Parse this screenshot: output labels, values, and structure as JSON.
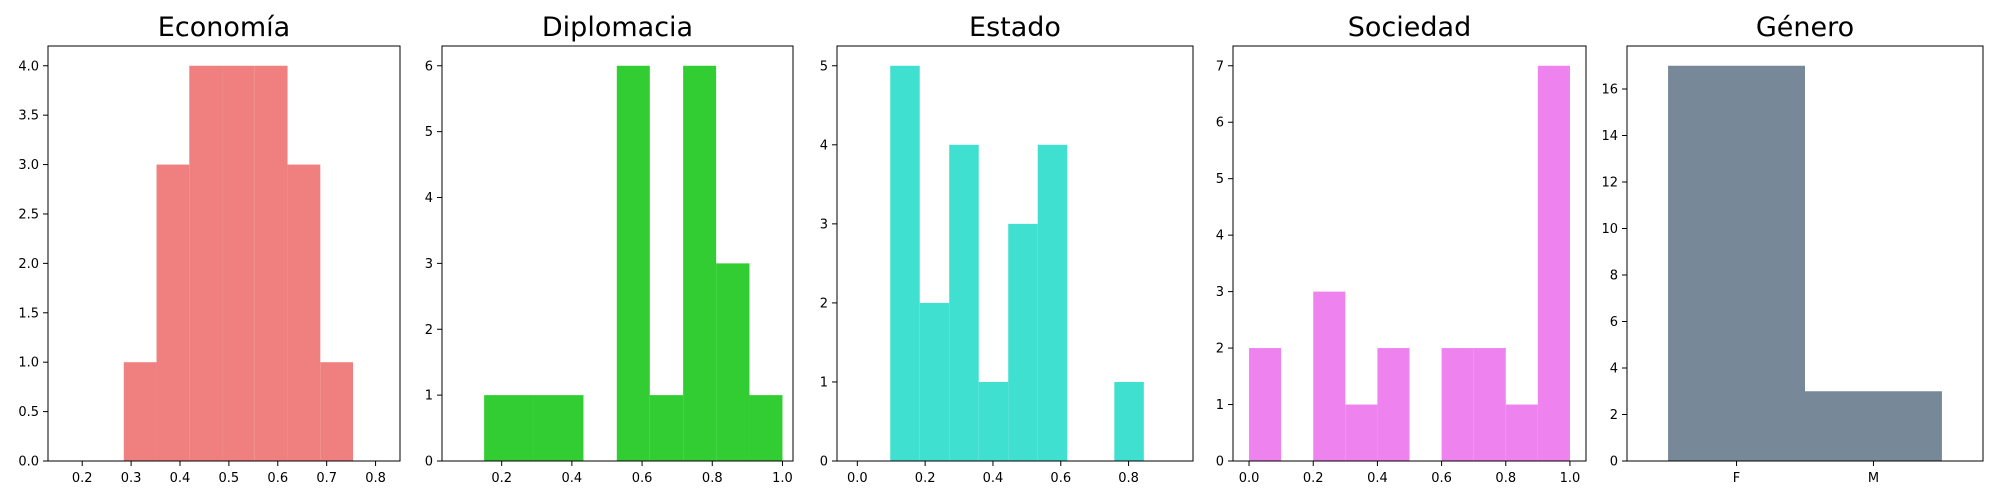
{
  "chart_data": [
    {
      "type": "histogram",
      "title": "Economía",
      "color": "#f08080",
      "xlim": [
        0.13,
        0.85
      ],
      "ylim": [
        0,
        4.2
      ],
      "xticks": [
        0.2,
        0.3,
        0.4,
        0.5,
        0.6,
        0.7,
        0.8
      ],
      "xtick_labels": [
        "0.2",
        "0.3",
        "0.4",
        "0.5",
        "0.6",
        "0.7",
        "0.8"
      ],
      "yticks": [
        0,
        0.5,
        1.0,
        1.5,
        2.0,
        2.5,
        3.0,
        3.5,
        4.0
      ],
      "ytick_labels": [
        "0.0",
        "0.5",
        "1.0",
        "1.5",
        "2.0",
        "2.5",
        "3.0",
        "3.5",
        "4.0"
      ],
      "bins": [
        {
          "x0": 0.285,
          "x1": 0.352,
          "count": 1
        },
        {
          "x0": 0.352,
          "x1": 0.419,
          "count": 3
        },
        {
          "x0": 0.419,
          "x1": 0.486,
          "count": 4
        },
        {
          "x0": 0.486,
          "x1": 0.553,
          "count": 4
        },
        {
          "x0": 0.553,
          "x1": 0.62,
          "count": 4
        },
        {
          "x0": 0.62,
          "x1": 0.687,
          "count": 3
        },
        {
          "x0": 0.687,
          "x1": 0.754,
          "count": 1
        }
      ]
    },
    {
      "type": "histogram",
      "title": "Diplomacia",
      "color": "#32cd32",
      "xlim": [
        0.03,
        1.03
      ],
      "ylim": [
        0,
        6.3
      ],
      "xticks": [
        0.2,
        0.4,
        0.6,
        0.8,
        1.0
      ],
      "xtick_labels": [
        "0.2",
        "0.4",
        "0.6",
        "0.8",
        "1.0"
      ],
      "yticks": [
        0,
        1,
        2,
        3,
        4,
        5,
        6
      ],
      "ytick_labels": [
        "0",
        "1",
        "2",
        "3",
        "4",
        "5",
        "6"
      ],
      "bins": [
        {
          "x0": 0.15,
          "x1": 0.292,
          "count": 1
        },
        {
          "x0": 0.292,
          "x1": 0.433,
          "count": 1
        },
        {
          "x0": 0.433,
          "x1": 0.528,
          "count": 0
        },
        {
          "x0": 0.528,
          "x1": 0.622,
          "count": 6
        },
        {
          "x0": 0.622,
          "x1": 0.717,
          "count": 1
        },
        {
          "x0": 0.717,
          "x1": 0.811,
          "count": 6
        },
        {
          "x0": 0.811,
          "x1": 0.906,
          "count": 3
        },
        {
          "x0": 0.906,
          "x1": 1.0,
          "count": 1
        }
      ]
    },
    {
      "type": "histogram",
      "title": "Estado",
      "color": "#40e0d0",
      "xlim": [
        -0.06,
        0.99
      ],
      "ylim": [
        0,
        5.25
      ],
      "xticks": [
        0.0,
        0.2,
        0.4,
        0.6,
        0.8
      ],
      "xtick_labels": [
        "0.0",
        "0.2",
        "0.4",
        "0.6",
        "0.8"
      ],
      "yticks": [
        0,
        1,
        2,
        3,
        4,
        5
      ],
      "ytick_labels": [
        "0",
        "1",
        "2",
        "3",
        "4",
        "5"
      ],
      "bins": [
        {
          "x0": 0.097,
          "x1": 0.184,
          "count": 5
        },
        {
          "x0": 0.184,
          "x1": 0.271,
          "count": 2
        },
        {
          "x0": 0.271,
          "x1": 0.358,
          "count": 4
        },
        {
          "x0": 0.358,
          "x1": 0.445,
          "count": 1
        },
        {
          "x0": 0.445,
          "x1": 0.532,
          "count": 3
        },
        {
          "x0": 0.532,
          "x1": 0.619,
          "count": 4
        },
        {
          "x0": 0.619,
          "x1": 0.706,
          "count": 0
        },
        {
          "x0": 0.706,
          "x1": 0.758,
          "count": 0
        },
        {
          "x0": 0.758,
          "x1": 0.845,
          "count": 1
        }
      ]
    },
    {
      "type": "histogram",
      "title": "Sociedad",
      "color": "#ee82ee",
      "xlim": [
        -0.05,
        1.05
      ],
      "ylim": [
        0,
        7.35
      ],
      "xticks": [
        0.0,
        0.2,
        0.4,
        0.6,
        0.8,
        1.0
      ],
      "xtick_labels": [
        "0.0",
        "0.2",
        "0.4",
        "0.6",
        "0.8",
        "1.0"
      ],
      "yticks": [
        0,
        1,
        2,
        3,
        4,
        5,
        6,
        7
      ],
      "ytick_labels": [
        "0",
        "1",
        "2",
        "3",
        "4",
        "5",
        "6",
        "7"
      ],
      "bins": [
        {
          "x0": 0.0,
          "x1": 0.1,
          "count": 2
        },
        {
          "x0": 0.1,
          "x1": 0.2,
          "count": 0
        },
        {
          "x0": 0.2,
          "x1": 0.3,
          "count": 3
        },
        {
          "x0": 0.3,
          "x1": 0.4,
          "count": 1
        },
        {
          "x0": 0.4,
          "x1": 0.5,
          "count": 2
        },
        {
          "x0": 0.5,
          "x1": 0.6,
          "count": 0
        },
        {
          "x0": 0.6,
          "x1": 0.7,
          "count": 2
        },
        {
          "x0": 0.7,
          "x1": 0.8,
          "count": 2
        },
        {
          "x0": 0.8,
          "x1": 0.9,
          "count": 1
        },
        {
          "x0": 0.9,
          "x1": 1.0,
          "count": 7
        }
      ]
    },
    {
      "type": "bar",
      "title": "Género",
      "color": "#778899",
      "categories": [
        "F",
        "M"
      ],
      "values": [
        17,
        3
      ],
      "ylim": [
        0,
        17.85
      ],
      "yticks": [
        0,
        2,
        4,
        6,
        8,
        10,
        12,
        14,
        16
      ],
      "ytick_labels": [
        "0",
        "2",
        "4",
        "6",
        "8",
        "10",
        "12",
        "14",
        "16"
      ]
    }
  ]
}
